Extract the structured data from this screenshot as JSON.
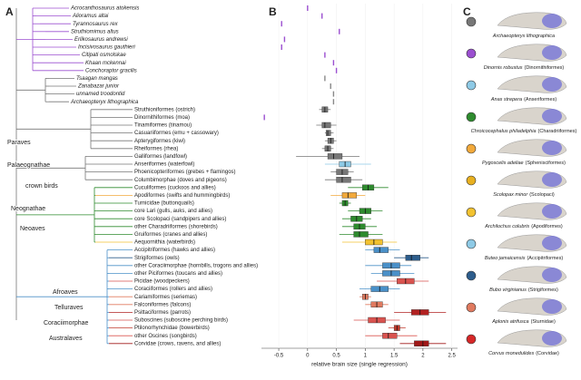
{
  "panels": [
    "A",
    "B",
    "C"
  ],
  "tree": {
    "clades": [
      "Paraves",
      "Palaeognathae",
      "crown birds",
      "Neognathae",
      "Neoaves",
      "Afroaves",
      "Telluraves",
      "Coraciimorphae",
      "Australaves"
    ]
  },
  "chart_data": {
    "type": "box",
    "xlabel": "relative brain size (single regression)",
    "categories": [
      "Acrocanthosaurus atokensis",
      "Alioramus altai",
      "Tyrannosaurus rex",
      "Struthiomimus altus",
      "Erlikosaurus andrewsi",
      "Incisivosaurus gauthieri",
      "Citipati osmolskae",
      "Khaan mckennai",
      "Conchoraptor gracilis",
      "Tsaagan mangas",
      "Zanabazar junior",
      "unnamed troodontid",
      "Archaeopteryx lithographica",
      "Struthioniformes (ostrich)",
      "Dinornithiformes (moa)",
      "Tinamiformes (tinamou)",
      "Casuariiformes (emu + cassowary)",
      "Apterygiformes (kiwi)",
      "Rheiformes (rhea)",
      "Galliformes (landfowl)",
      "Anseriformes (waterfowl)",
      "Phoenicopteriformes (grebes + flamingos)",
      "Columbimorphae (doves and pigeons)",
      "Cuculiformes (cuckoos and allies)",
      "Apodiformes (swifts and hummingbirds)",
      "Turnicidae (buttonquails)",
      "core Lari (gulls, auks, and allies)",
      "core Scolopaci (sandpipers and allies)",
      "other Charadriiformes (shorebirds)",
      "Gruiformes (cranes and allies)",
      "Aequornithia (waterbirds)",
      "Accipitriformes (hawks and allies)",
      "Strigiformes (owls)",
      "other Coraciimorphae (hornbills, trogons and allies)",
      "other Piciformes (toucans and allies)",
      "Picidae (woodpeckers)",
      "Coraciiformes (rollers and allies)",
      "Cariamiformes (seriemas)",
      "Falconiformes (falcons)",
      "Psittaciformes (parrots)",
      "Suboscines (suboscine perching birds)",
      "Ptilonorhynchidae (bowerbirds)",
      "other Oscines (songbirds)",
      "Corvidae (crows, ravens, and allies)"
    ],
    "label_colors": [
      "#222",
      "#222",
      "#222",
      "#222",
      "#222",
      "#222",
      "#222",
      "#222",
      "#222",
      "#222",
      "#222",
      "#222",
      "#222",
      "#222",
      "#222",
      "#222",
      "#222",
      "#222",
      "#222",
      "#222",
      "#222",
      "#222",
      "#222",
      "#222",
      "#222",
      "#222",
      "#222",
      "#222",
      "#222",
      "#222",
      "#222",
      "#d62728",
      "#d62728",
      "#222",
      "#222",
      "#222",
      "#222",
      "#d62728",
      "#d62728",
      "#222",
      "#222",
      "#222",
      "#222",
      "#222"
    ],
    "colors": [
      "#9b4fd0",
      "#9b4fd0",
      "#9b4fd0",
      "#9b4fd0",
      "#9b4fd0",
      "#9b4fd0",
      "#9b4fd0",
      "#9b4fd0",
      "#9b4fd0",
      "#888888",
      "#888888",
      "#888888",
      "#888888",
      "#777777",
      "#9b4fd0",
      "#777777",
      "#777777",
      "#777777",
      "#777777",
      "#777777",
      "#8ecae6",
      "#777777",
      "#777777",
      "#2e8b2e",
      "#f2a93b",
      "#2e8b2e",
      "#2e8b2e",
      "#2e8b2e",
      "#2e8b2e",
      "#2e8b2e",
      "#f2c230",
      "#4a90c8",
      "#2d5d8c",
      "#4a90c8",
      "#4a90c8",
      "#d9534f",
      "#4a90c8",
      "#e07a5f",
      "#e07a5f",
      "#b22222",
      "#d9534f",
      "#c0392b",
      "#d9534f",
      "#a01818"
    ],
    "points": [
      0.0,
      0.25,
      -0.45,
      0.55,
      -0.4,
      -0.45,
      0.3,
      0.45,
      0.5,
      0.3,
      0.4,
      0.45,
      0.45,
      null,
      -0.75,
      null,
      null,
      null,
      null,
      null,
      null,
      null,
      null,
      null,
      null,
      null,
      null,
      null,
      null,
      null,
      null,
      null,
      null,
      null,
      null,
      null,
      null,
      null,
      null,
      null,
      null,
      null,
      null,
      null
    ],
    "stats": [
      null,
      null,
      null,
      null,
      null,
      null,
      null,
      null,
      null,
      null,
      null,
      null,
      null,
      [
        0.2,
        0.25,
        0.3,
        0.35,
        0.4
      ],
      null,
      [
        0.15,
        0.25,
        0.3,
        0.4,
        0.5
      ],
      [
        0.3,
        0.32,
        0.35,
        0.4,
        0.45
      ],
      [
        0.3,
        0.35,
        0.4,
        0.45,
        0.5
      ],
      [
        0.25,
        0.3,
        0.35,
        0.4,
        0.45
      ],
      [
        -0.2,
        0.35,
        0.45,
        0.6,
        0.9
      ],
      [
        0.3,
        0.55,
        0.65,
        0.75,
        1.1
      ],
      [
        0.4,
        0.5,
        0.6,
        0.7,
        0.8
      ],
      [
        0.3,
        0.5,
        0.6,
        0.75,
        0.95
      ],
      [
        0.7,
        0.95,
        1.05,
        1.15,
        1.4
      ],
      [
        0.4,
        0.6,
        0.7,
        0.85,
        1.0
      ],
      [
        0.55,
        0.6,
        0.65,
        0.7,
        0.75
      ],
      [
        0.7,
        0.9,
        1.0,
        1.1,
        1.3
      ],
      [
        0.6,
        0.75,
        0.85,
        0.95,
        1.1
      ],
      [
        0.6,
        0.8,
        0.9,
        1.0,
        1.2
      ],
      [
        0.55,
        0.8,
        0.9,
        1.05,
        1.3
      ],
      [
        0.6,
        1.0,
        1.15,
        1.3,
        1.55
      ],
      [
        1.0,
        1.15,
        1.25,
        1.4,
        1.6
      ],
      [
        1.5,
        1.7,
        1.8,
        1.95,
        2.1
      ],
      [
        1.0,
        1.3,
        1.45,
        1.6,
        1.8
      ],
      [
        1.1,
        1.3,
        1.45,
        1.6,
        1.85
      ],
      [
        1.2,
        1.55,
        1.7,
        1.85,
        2.1
      ],
      [
        0.9,
        1.1,
        1.25,
        1.4,
        1.6
      ],
      [
        0.9,
        0.95,
        1.0,
        1.05,
        1.1
      ],
      [
        1.0,
        1.1,
        1.2,
        1.3,
        1.4
      ],
      [
        1.5,
        1.8,
        1.95,
        2.1,
        2.4
      ],
      [
        0.8,
        1.05,
        1.2,
        1.35,
        1.6
      ],
      [
        1.4,
        1.5,
        1.55,
        1.6,
        1.7
      ],
      [
        1.0,
        1.3,
        1.4,
        1.55,
        1.9
      ],
      [
        1.6,
        1.85,
        2.0,
        2.1,
        2.4
      ]
    ],
    "xlim": [
      -0.8,
      2.6
    ],
    "xticks": [
      -0.5,
      0,
      0.5,
      1,
      1.5,
      2,
      2.5
    ]
  },
  "panel_c": {
    "species": [
      {
        "name": "Archaeopteryx lithographica",
        "color": "#777777"
      },
      {
        "name": "Dinornis robustus",
        "group": "(Dinornithiformes)",
        "color": "#9b4fd0"
      },
      {
        "name": "Anas strepera",
        "group": "(Anseriformes)",
        "color": "#8ecae6"
      },
      {
        "name": "Chroicocephalus philadelphia",
        "group": "(Charadriiformes)",
        "color": "#2e8b2e"
      },
      {
        "name": "Pygoscelis adeliae",
        "group": "(Sphenisciformes)",
        "color": "#f2a93b"
      },
      {
        "name": "Scolopax minor",
        "group": "(Scolopaci)",
        "color": "#e8b020"
      },
      {
        "name": "Archilochus colubris",
        "group": "(Apodiformes)",
        "color": "#f2c230"
      },
      {
        "name": "Buteo jamaicensis",
        "group": "(Accipitriformes)",
        "color": "#8ecae6"
      },
      {
        "name": "Bubo virginianus",
        "group": "(Strigiformes)",
        "color": "#2d5d8c"
      },
      {
        "name": "Aplonis atrifusca",
        "group": "(Sturnidae)",
        "color": "#e07a5f"
      },
      {
        "name": "Corvus monedulides",
        "group": "(Corvidae)",
        "color": "#d62728"
      }
    ]
  }
}
